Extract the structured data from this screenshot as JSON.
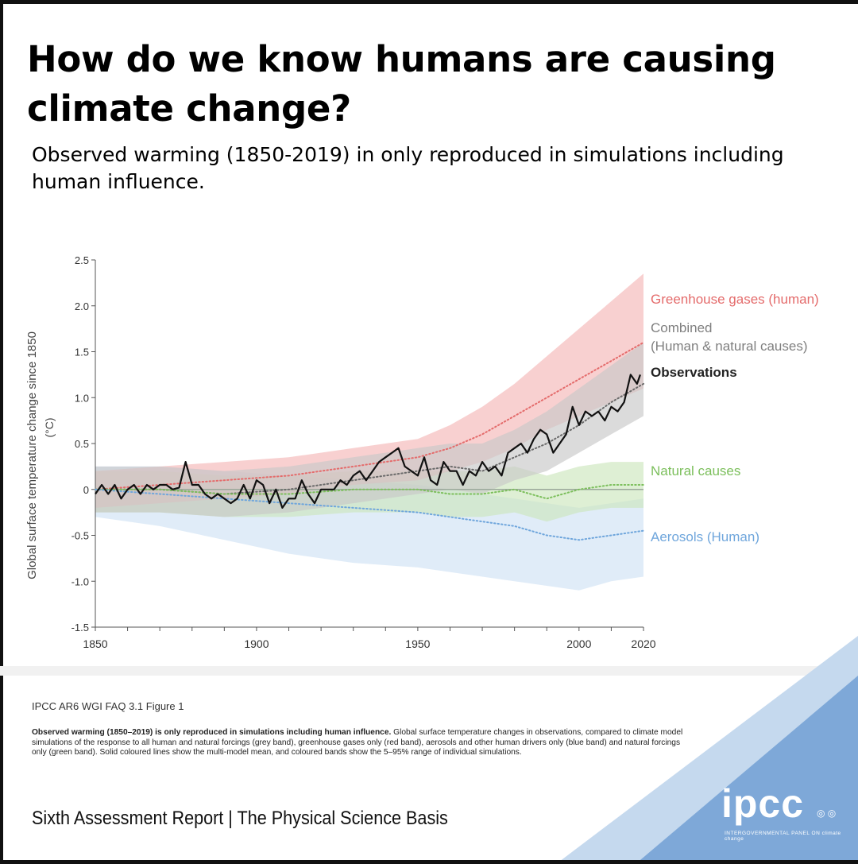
{
  "header": {
    "title": "How do we know humans are causing climate change?",
    "subtitle": "Observed warming (1850-2019) in only reproduced in simulations including human influence."
  },
  "chart_data": {
    "type": "line",
    "ylabel": "Global surface temperature change since 1850",
    "yunit": "(°C)",
    "xlim": [
      1850,
      2020
    ],
    "ylim": [
      -1.5,
      2.5
    ],
    "xticks": [
      "1850",
      "1900",
      "1950",
      "2000",
      "2020"
    ],
    "yticks": [
      "2.5",
      "2.0",
      "1.5",
      "1.0",
      "0.5",
      "0",
      "-0.5",
      "-1.0",
      "-1.5"
    ],
    "series": [
      {
        "name": "Greenhouse gases (human)",
        "style": "dotted",
        "color": "#e46b6b",
        "band_color": "#f5b7b7",
        "x": [
          1850,
          1870,
          1890,
          1910,
          1930,
          1950,
          1960,
          1970,
          1980,
          1990,
          2000,
          2010,
          2020
        ],
        "y": [
          0.0,
          0.05,
          0.1,
          0.15,
          0.25,
          0.35,
          0.45,
          0.6,
          0.8,
          1.0,
          1.2,
          1.4,
          1.6
        ],
        "lower": [
          -0.2,
          -0.15,
          -0.1,
          -0.05,
          0.05,
          0.1,
          0.2,
          0.3,
          0.45,
          0.65,
          0.8,
          0.95,
          1.1
        ],
        "upper": [
          0.2,
          0.25,
          0.3,
          0.35,
          0.45,
          0.55,
          0.7,
          0.9,
          1.15,
          1.45,
          1.75,
          2.05,
          2.35
        ]
      },
      {
        "name": "Combined",
        "label2": "(Human & natural causes)",
        "style": "dotted",
        "color": "#6a6a6a",
        "band_color": "#c7c7c7",
        "x": [
          1850,
          1870,
          1890,
          1910,
          1930,
          1950,
          1960,
          1970,
          1980,
          1990,
          2000,
          2010,
          2020
        ],
        "y": [
          0.0,
          0.0,
          -0.05,
          0.0,
          0.1,
          0.2,
          0.25,
          0.2,
          0.35,
          0.5,
          0.7,
          0.95,
          1.15
        ],
        "lower": [
          -0.25,
          -0.25,
          -0.3,
          -0.25,
          -0.15,
          -0.05,
          0.0,
          -0.05,
          0.1,
          0.2,
          0.4,
          0.6,
          0.8
        ],
        "upper": [
          0.25,
          0.25,
          0.2,
          0.25,
          0.35,
          0.45,
          0.5,
          0.5,
          0.65,
          0.85,
          1.1,
          1.35,
          1.6
        ]
      },
      {
        "name": "Natural causes",
        "style": "dotted",
        "color": "#7cbf5c",
        "band_color": "#cde7bd",
        "x": [
          1850,
          1870,
          1890,
          1910,
          1930,
          1950,
          1960,
          1970,
          1980,
          1990,
          2000,
          2010,
          2020
        ],
        "y": [
          0.0,
          0.0,
          -0.05,
          -0.05,
          0.0,
          0.0,
          -0.05,
          -0.05,
          0.0,
          -0.1,
          0.0,
          0.05,
          0.05
        ],
        "lower": [
          -0.25,
          -0.25,
          -0.3,
          -0.3,
          -0.25,
          -0.25,
          -0.3,
          -0.3,
          -0.25,
          -0.35,
          -0.25,
          -0.2,
          -0.2
        ],
        "upper": [
          0.2,
          0.2,
          0.15,
          0.15,
          0.2,
          0.2,
          0.2,
          0.2,
          0.25,
          0.15,
          0.25,
          0.3,
          0.3
        ]
      },
      {
        "name": "Aerosols (Human)",
        "style": "dotted",
        "color": "#6fa6dc",
        "band_color": "#cfe2f5",
        "x": [
          1850,
          1870,
          1890,
          1910,
          1930,
          1950,
          1960,
          1970,
          1980,
          1990,
          2000,
          2010,
          2020
        ],
        "y": [
          0.0,
          -0.05,
          -0.1,
          -0.15,
          -0.2,
          -0.25,
          -0.3,
          -0.35,
          -0.4,
          -0.5,
          -0.55,
          -0.5,
          -0.45
        ],
        "lower": [
          -0.3,
          -0.4,
          -0.55,
          -0.7,
          -0.8,
          -0.85,
          -0.9,
          -0.95,
          -1.0,
          -1.05,
          -1.1,
          -1.0,
          -0.95
        ],
        "upper": [
          0.25,
          0.25,
          0.2,
          0.15,
          0.1,
          0.05,
          0.0,
          -0.05,
          -0.1,
          -0.15,
          -0.2,
          -0.15,
          -0.1
        ]
      },
      {
        "name": "Observations",
        "style": "solid",
        "color": "#111111",
        "x": [
          1850,
          1852,
          1854,
          1856,
          1858,
          1860,
          1862,
          1864,
          1866,
          1868,
          1870,
          1872,
          1874,
          1876,
          1878,
          1880,
          1882,
          1884,
          1886,
          1888,
          1890,
          1892,
          1894,
          1896,
          1898,
          1900,
          1902,
          1904,
          1906,
          1908,
          1910,
          1912,
          1914,
          1916,
          1918,
          1920,
          1922,
          1924,
          1926,
          1928,
          1930,
          1932,
          1934,
          1936,
          1938,
          1940,
          1942,
          1944,
          1946,
          1948,
          1950,
          1952,
          1954,
          1956,
          1958,
          1960,
          1962,
          1964,
          1966,
          1968,
          1970,
          1972,
          1974,
          1976,
          1978,
          1980,
          1982,
          1984,
          1986,
          1988,
          1990,
          1992,
          1994,
          1996,
          1998,
          2000,
          2002,
          2004,
          2006,
          2008,
          2010,
          2012,
          2014,
          2016,
          2018,
          2019
        ],
        "y": [
          -0.05,
          0.05,
          -0.05,
          0.05,
          -0.1,
          0.0,
          0.05,
          -0.05,
          0.05,
          0.0,
          0.05,
          0.05,
          0.0,
          0.02,
          0.3,
          0.05,
          0.05,
          -0.05,
          -0.1,
          -0.05,
          -0.1,
          -0.15,
          -0.1,
          0.05,
          -0.1,
          0.1,
          0.05,
          -0.15,
          0.0,
          -0.2,
          -0.1,
          -0.1,
          0.1,
          -0.05,
          -0.15,
          0.0,
          0.0,
          0.0,
          0.1,
          0.05,
          0.15,
          0.2,
          0.1,
          0.2,
          0.3,
          0.35,
          0.4,
          0.45,
          0.25,
          0.2,
          0.15,
          0.35,
          0.1,
          0.05,
          0.3,
          0.2,
          0.2,
          0.05,
          0.2,
          0.15,
          0.3,
          0.2,
          0.25,
          0.15,
          0.4,
          0.45,
          0.5,
          0.4,
          0.55,
          0.65,
          0.6,
          0.4,
          0.5,
          0.6,
          0.9,
          0.7,
          0.85,
          0.8,
          0.85,
          0.75,
          0.9,
          0.85,
          0.95,
          1.25,
          1.15,
          1.25
        ]
      }
    ],
    "legend": [
      {
        "text": "Greenhouse gases (human)",
        "color": "#e46b6b"
      },
      {
        "text": "Combined",
        "text2": "(Human & natural causes)",
        "color": "#7f7f7f"
      },
      {
        "text": "Observations",
        "color": "#222222"
      },
      {
        "text": "Natural causes",
        "color": "#7cbf5c"
      },
      {
        "text": "Aerosols (Human)",
        "color": "#6fa6dc"
      }
    ]
  },
  "footer": {
    "source": "IPCC AR6 WGI FAQ 3.1 Figure 1",
    "caption_bold": "Observed warming (1850–2019) is only reproduced in simulations including human influence.",
    "caption_rest": " Global surface temperature changes in observations, compared to climate model simulations of the response to all human and natural forcings (grey band), greenhouse gases only (red band), aerosols and other human drivers only (blue band) and natural forcings only (green band). Solid coloured lines show the multi-model mean, and coloured bands show the 5–95% range of individual simulations.",
    "report": "Sixth Assessment Report | The Physical Science Basis",
    "logo": "ipcc",
    "logo_sub": "INTERGOVERNMENTAL PANEL ON climate change",
    "logo_extra": "◎ ◎",
    "corner_color_light": "#c5d9ee",
    "corner_color_dark": "#7ea8d8"
  }
}
